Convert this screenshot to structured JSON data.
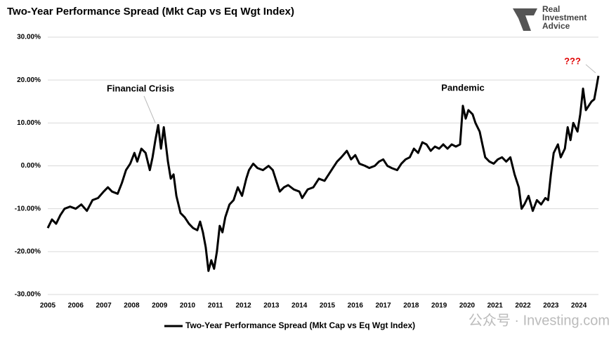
{
  "chart_data": {
    "type": "line",
    "title": "Two-Year Performance Spread (Mkt Cap vs Eq Wgt Index)",
    "annotations": [
      "Financial Crisis",
      "Pandemic",
      "???"
    ],
    "x": [
      2005.0,
      2005.15,
      2005.3,
      2005.45,
      2005.6,
      2005.8,
      2006.0,
      2006.2,
      2006.4,
      2006.6,
      2006.8,
      2007.0,
      2007.15,
      2007.3,
      2007.5,
      2007.65,
      2007.8,
      2007.95,
      2008.1,
      2008.2,
      2008.35,
      2008.5,
      2008.65,
      2008.75,
      2008.85,
      2008.95,
      2009.05,
      2009.15,
      2009.3,
      2009.4,
      2009.5,
      2009.6,
      2009.75,
      2009.9,
      2010.05,
      2010.2,
      2010.35,
      2010.45,
      2010.55,
      2010.65,
      2010.75,
      2010.85,
      2010.95,
      2011.05,
      2011.15,
      2011.25,
      2011.35,
      2011.5,
      2011.65,
      2011.8,
      2011.95,
      2012.1,
      2012.2,
      2012.35,
      2012.5,
      2012.7,
      2012.9,
      2013.05,
      2013.2,
      2013.3,
      2013.45,
      2013.6,
      2013.8,
      2014.0,
      2014.1,
      2014.3,
      2014.5,
      2014.7,
      2014.9,
      2015.05,
      2015.2,
      2015.35,
      2015.5,
      2015.7,
      2015.85,
      2016.0,
      2016.15,
      2016.35,
      2016.5,
      2016.7,
      2016.85,
      2017.0,
      2017.15,
      2017.3,
      2017.5,
      2017.65,
      2017.8,
      2017.95,
      2018.1,
      2018.25,
      2018.4,
      2018.55,
      2018.7,
      2018.85,
      2019.0,
      2019.15,
      2019.3,
      2019.45,
      2019.6,
      2019.75,
      2019.85,
      2019.95,
      2020.05,
      2020.2,
      2020.3,
      2020.45,
      2020.55,
      2020.65,
      2020.8,
      2020.95,
      2021.1,
      2021.25,
      2021.4,
      2021.55,
      2021.7,
      2021.85,
      2021.95,
      2022.05,
      2022.2,
      2022.35,
      2022.5,
      2022.65,
      2022.8,
      2022.9,
      2023.0,
      2023.1,
      2023.25,
      2023.35,
      2023.5,
      2023.6,
      2023.7,
      2023.8,
      2023.95,
      2024.05,
      2024.15,
      2024.25,
      2024.35,
      2024.45,
      2024.55,
      2024.62,
      2024.7
    ],
    "series": [
      {
        "name": "Two-Year Performance Spread (Mkt Cap vs Eq Wgt Index)",
        "color": "#000000",
        "values": [
          -14.5,
          -12.5,
          -13.5,
          -11.5,
          -10,
          -9.5,
          -10,
          -9,
          -10.5,
          -8,
          -7.5,
          -6,
          -5,
          -6,
          -6.5,
          -4,
          -1,
          0.5,
          3,
          1,
          4,
          3,
          -1,
          2,
          6,
          9.5,
          4,
          9,
          1,
          -3,
          -2,
          -7,
          -11,
          -12,
          -13.5,
          -14.5,
          -15,
          -13,
          -15.5,
          -19,
          -24.5,
          -22,
          -24,
          -20,
          -14,
          -15.5,
          -12,
          -9,
          -8,
          -5,
          -7,
          -3,
          -1,
          0.5,
          -0.5,
          -1,
          0,
          -1,
          -4,
          -6,
          -5,
          -4.5,
          -5.5,
          -6,
          -7.5,
          -5.5,
          -5,
          -3,
          -3.5,
          -2,
          -0.5,
          1,
          2,
          3.5,
          1.5,
          2.5,
          0.5,
          0,
          -0.5,
          0,
          1,
          1.5,
          0,
          -0.5,
          -1,
          0.5,
          1.5,
          2,
          4,
          3,
          5.5,
          5,
          3.5,
          4.5,
          4,
          5,
          4,
          5,
          4.5,
          5,
          14,
          11,
          13,
          12,
          10,
          8,
          5,
          2,
          1,
          0.5,
          1.5,
          2,
          1,
          2,
          -2,
          -5,
          -10,
          -9,
          -7,
          -10.5,
          -8,
          -9,
          -7.5,
          -8,
          -2,
          3,
          5,
          2,
          4,
          9,
          6,
          10,
          8,
          12,
          18,
          13,
          14,
          15,
          15.5,
          18,
          21
        ]
      }
    ],
    "xlim": [
      2005,
      2024.7
    ],
    "xticks": [
      2005,
      2006,
      2007,
      2008,
      2009,
      2010,
      2011,
      2012,
      2013,
      2014,
      2015,
      2016,
      2017,
      2018,
      2019,
      2020,
      2021,
      2022,
      2023,
      2024
    ],
    "ylim": [
      -30,
      30
    ],
    "yticks": [
      {
        "value": -30,
        "label": "-30.00%"
      },
      {
        "value": -20,
        "label": "-20.00%"
      },
      {
        "value": -10,
        "label": "-10.00%"
      },
      {
        "value": 0,
        "label": "0.00%"
      },
      {
        "value": 10,
        "label": "10.00%"
      },
      {
        "value": 20,
        "label": "20.00%"
      },
      {
        "value": 30,
        "label": "30.00%"
      }
    ],
    "grid": true,
    "legend": "bottom"
  },
  "branding": {
    "logo": [
      "Real",
      "Investment",
      "Advice"
    ],
    "watermark": "公众号 · Investing.com"
  }
}
